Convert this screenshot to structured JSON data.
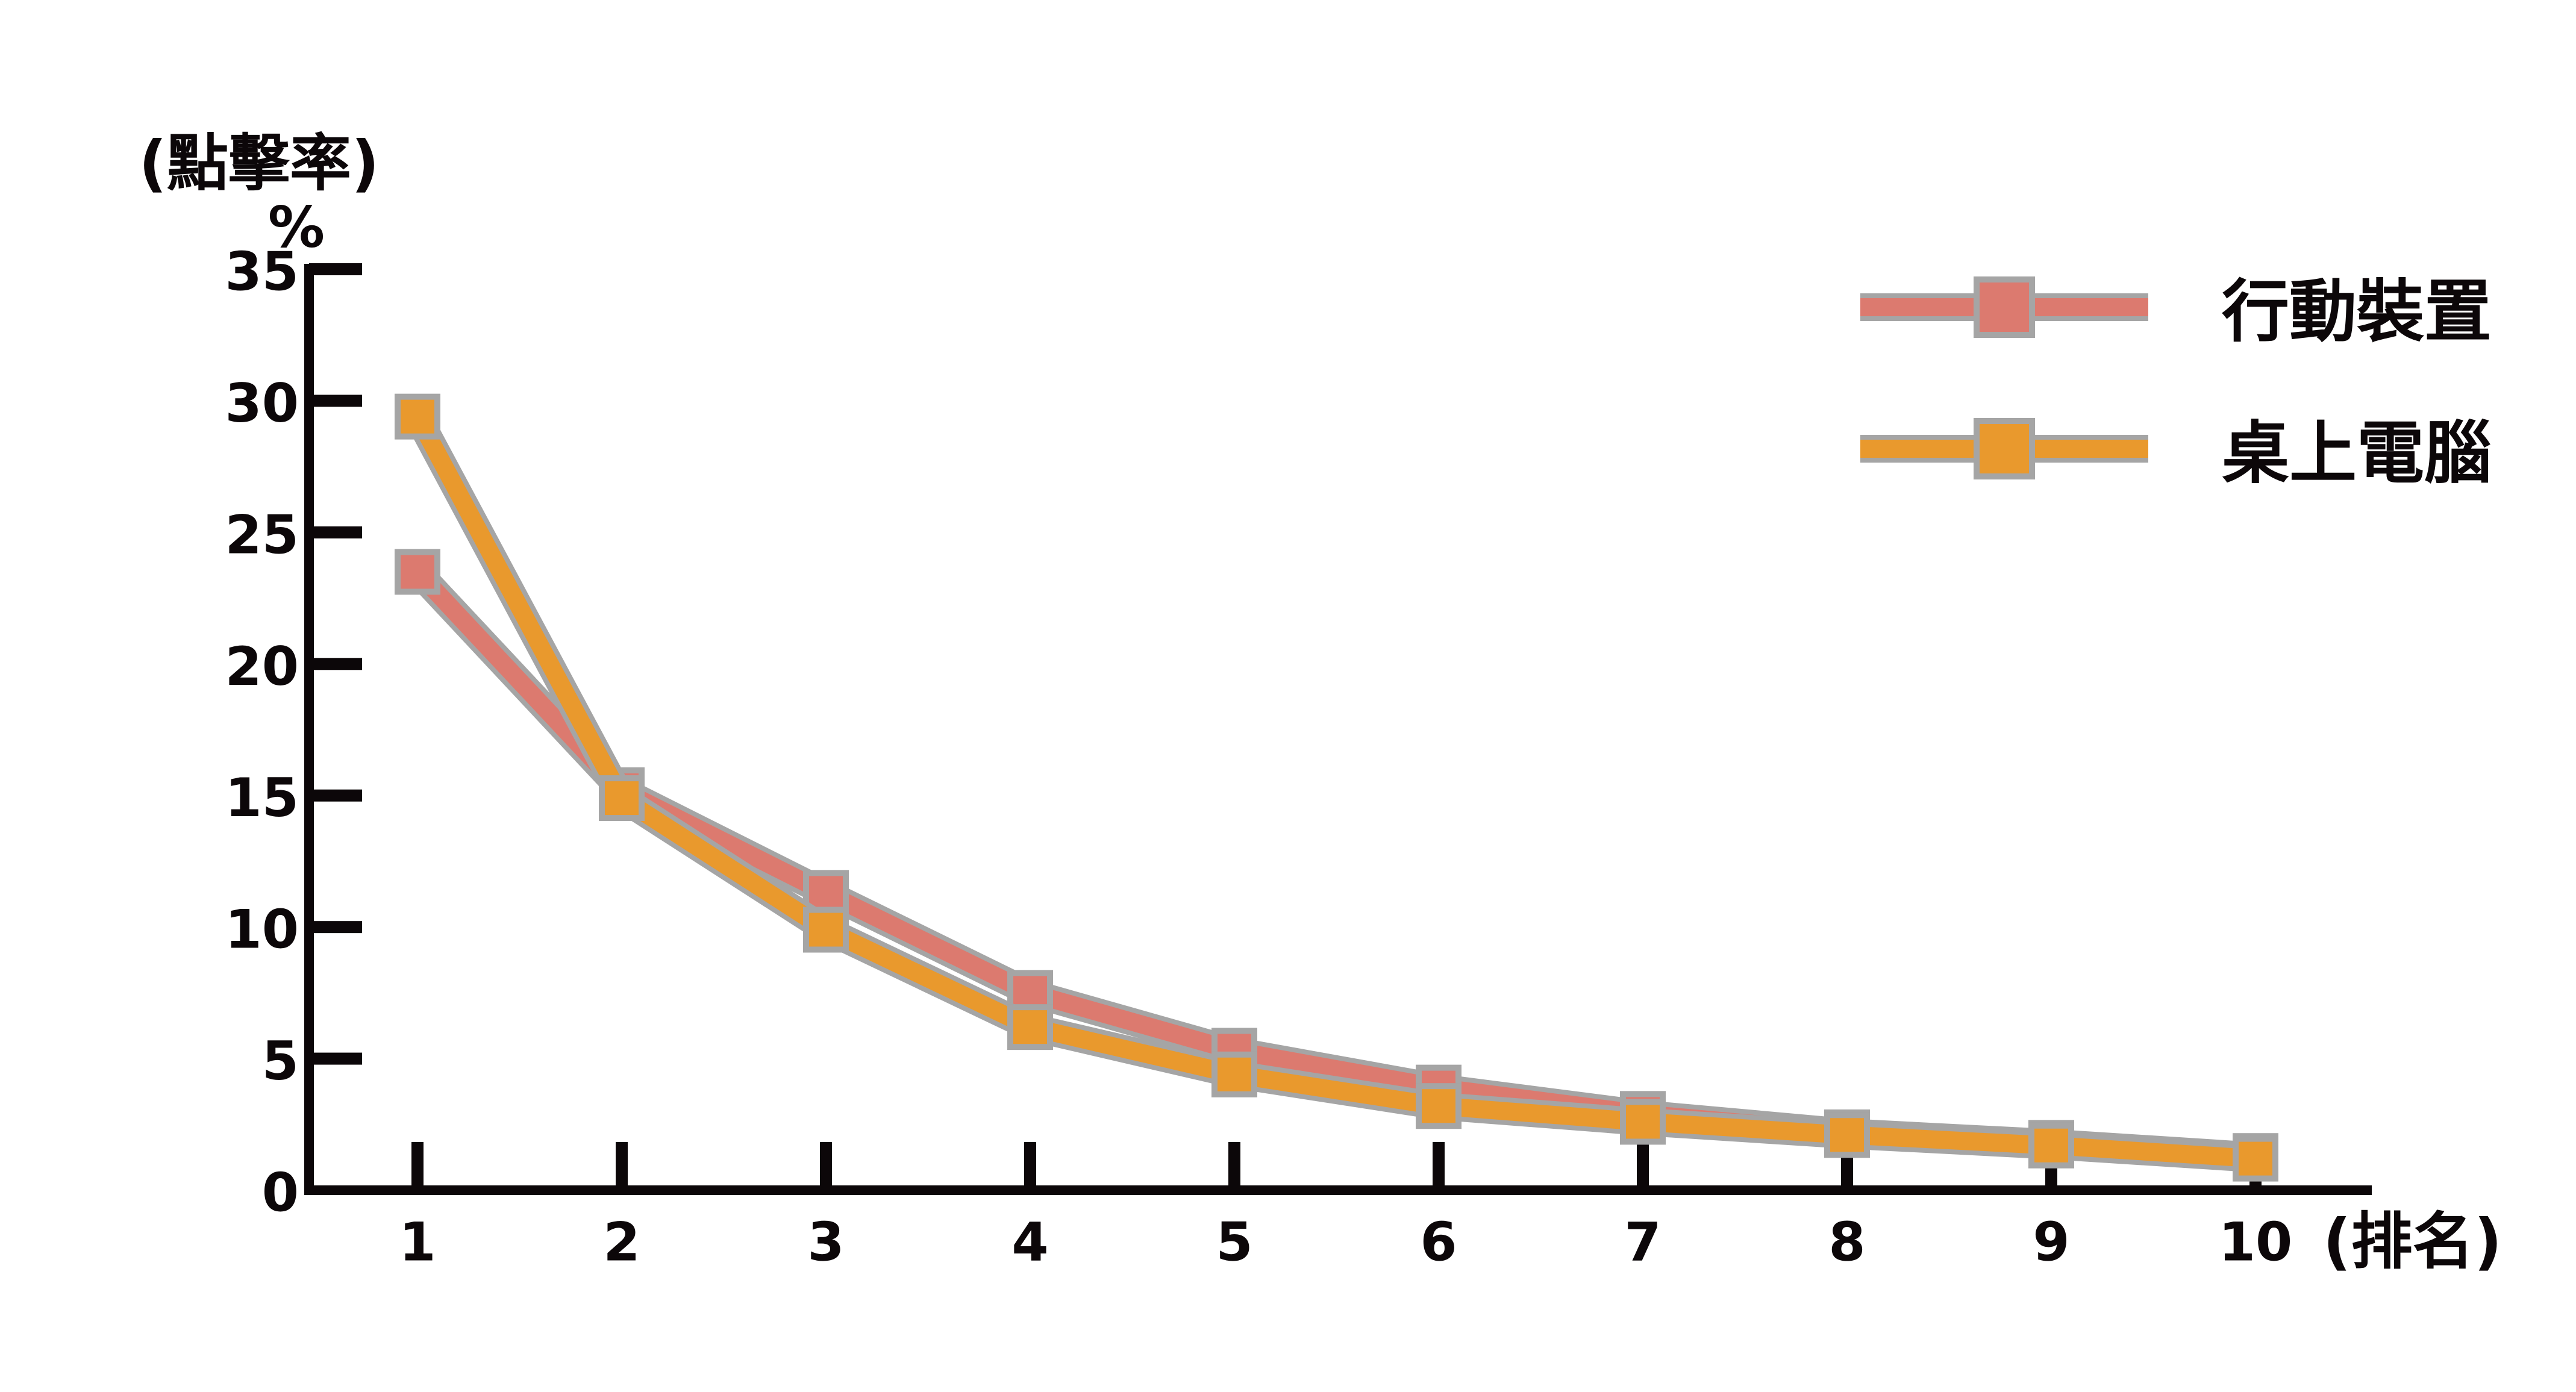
{
  "figure": {
    "background": "#ffffff",
    "axis_color": "#0c0709",
    "marker_outline_color": "#a5a5a5"
  },
  "y_axis": {
    "title": "(點擊率)",
    "unit": "%",
    "tick_labels": [
      "0",
      "5",
      "10",
      "15",
      "20",
      "25",
      "30",
      "35"
    ]
  },
  "x_axis": {
    "tick_labels": [
      "1",
      "2",
      "3",
      "4",
      "5",
      "6",
      "7",
      "8",
      "9",
      "10"
    ],
    "unit_label": "(排名)"
  },
  "legend": {
    "items": [
      {
        "label": "行動裝置",
        "color": "#dc7a6f"
      },
      {
        "label": "桌上電腦",
        "color": "#e9992d"
      }
    ]
  },
  "chart_data": {
    "type": "line",
    "title": "",
    "xlabel": "(排名)",
    "ylabel": "(點擊率) %",
    "categories": [
      1,
      2,
      3,
      4,
      5,
      6,
      7,
      8,
      9,
      10
    ],
    "ylim": [
      0,
      35
    ],
    "y_ticks": [
      0,
      5,
      10,
      15,
      20,
      25,
      30,
      35
    ],
    "grid": false,
    "legend_position": "top-right",
    "marker": "square",
    "series": [
      {
        "name": "行動裝置",
        "color": "#dc7a6f",
        "values": [
          23.5,
          15.2,
          11.3,
          7.5,
          5.3,
          3.9,
          2.9,
          2.2,
          1.8,
          1.3
        ]
      },
      {
        "name": "桌上電腦",
        "color": "#e9992d",
        "values": [
          29.4,
          14.9,
          9.9,
          6.2,
          4.4,
          3.2,
          2.6,
          2.1,
          1.7,
          1.2
        ]
      }
    ]
  }
}
